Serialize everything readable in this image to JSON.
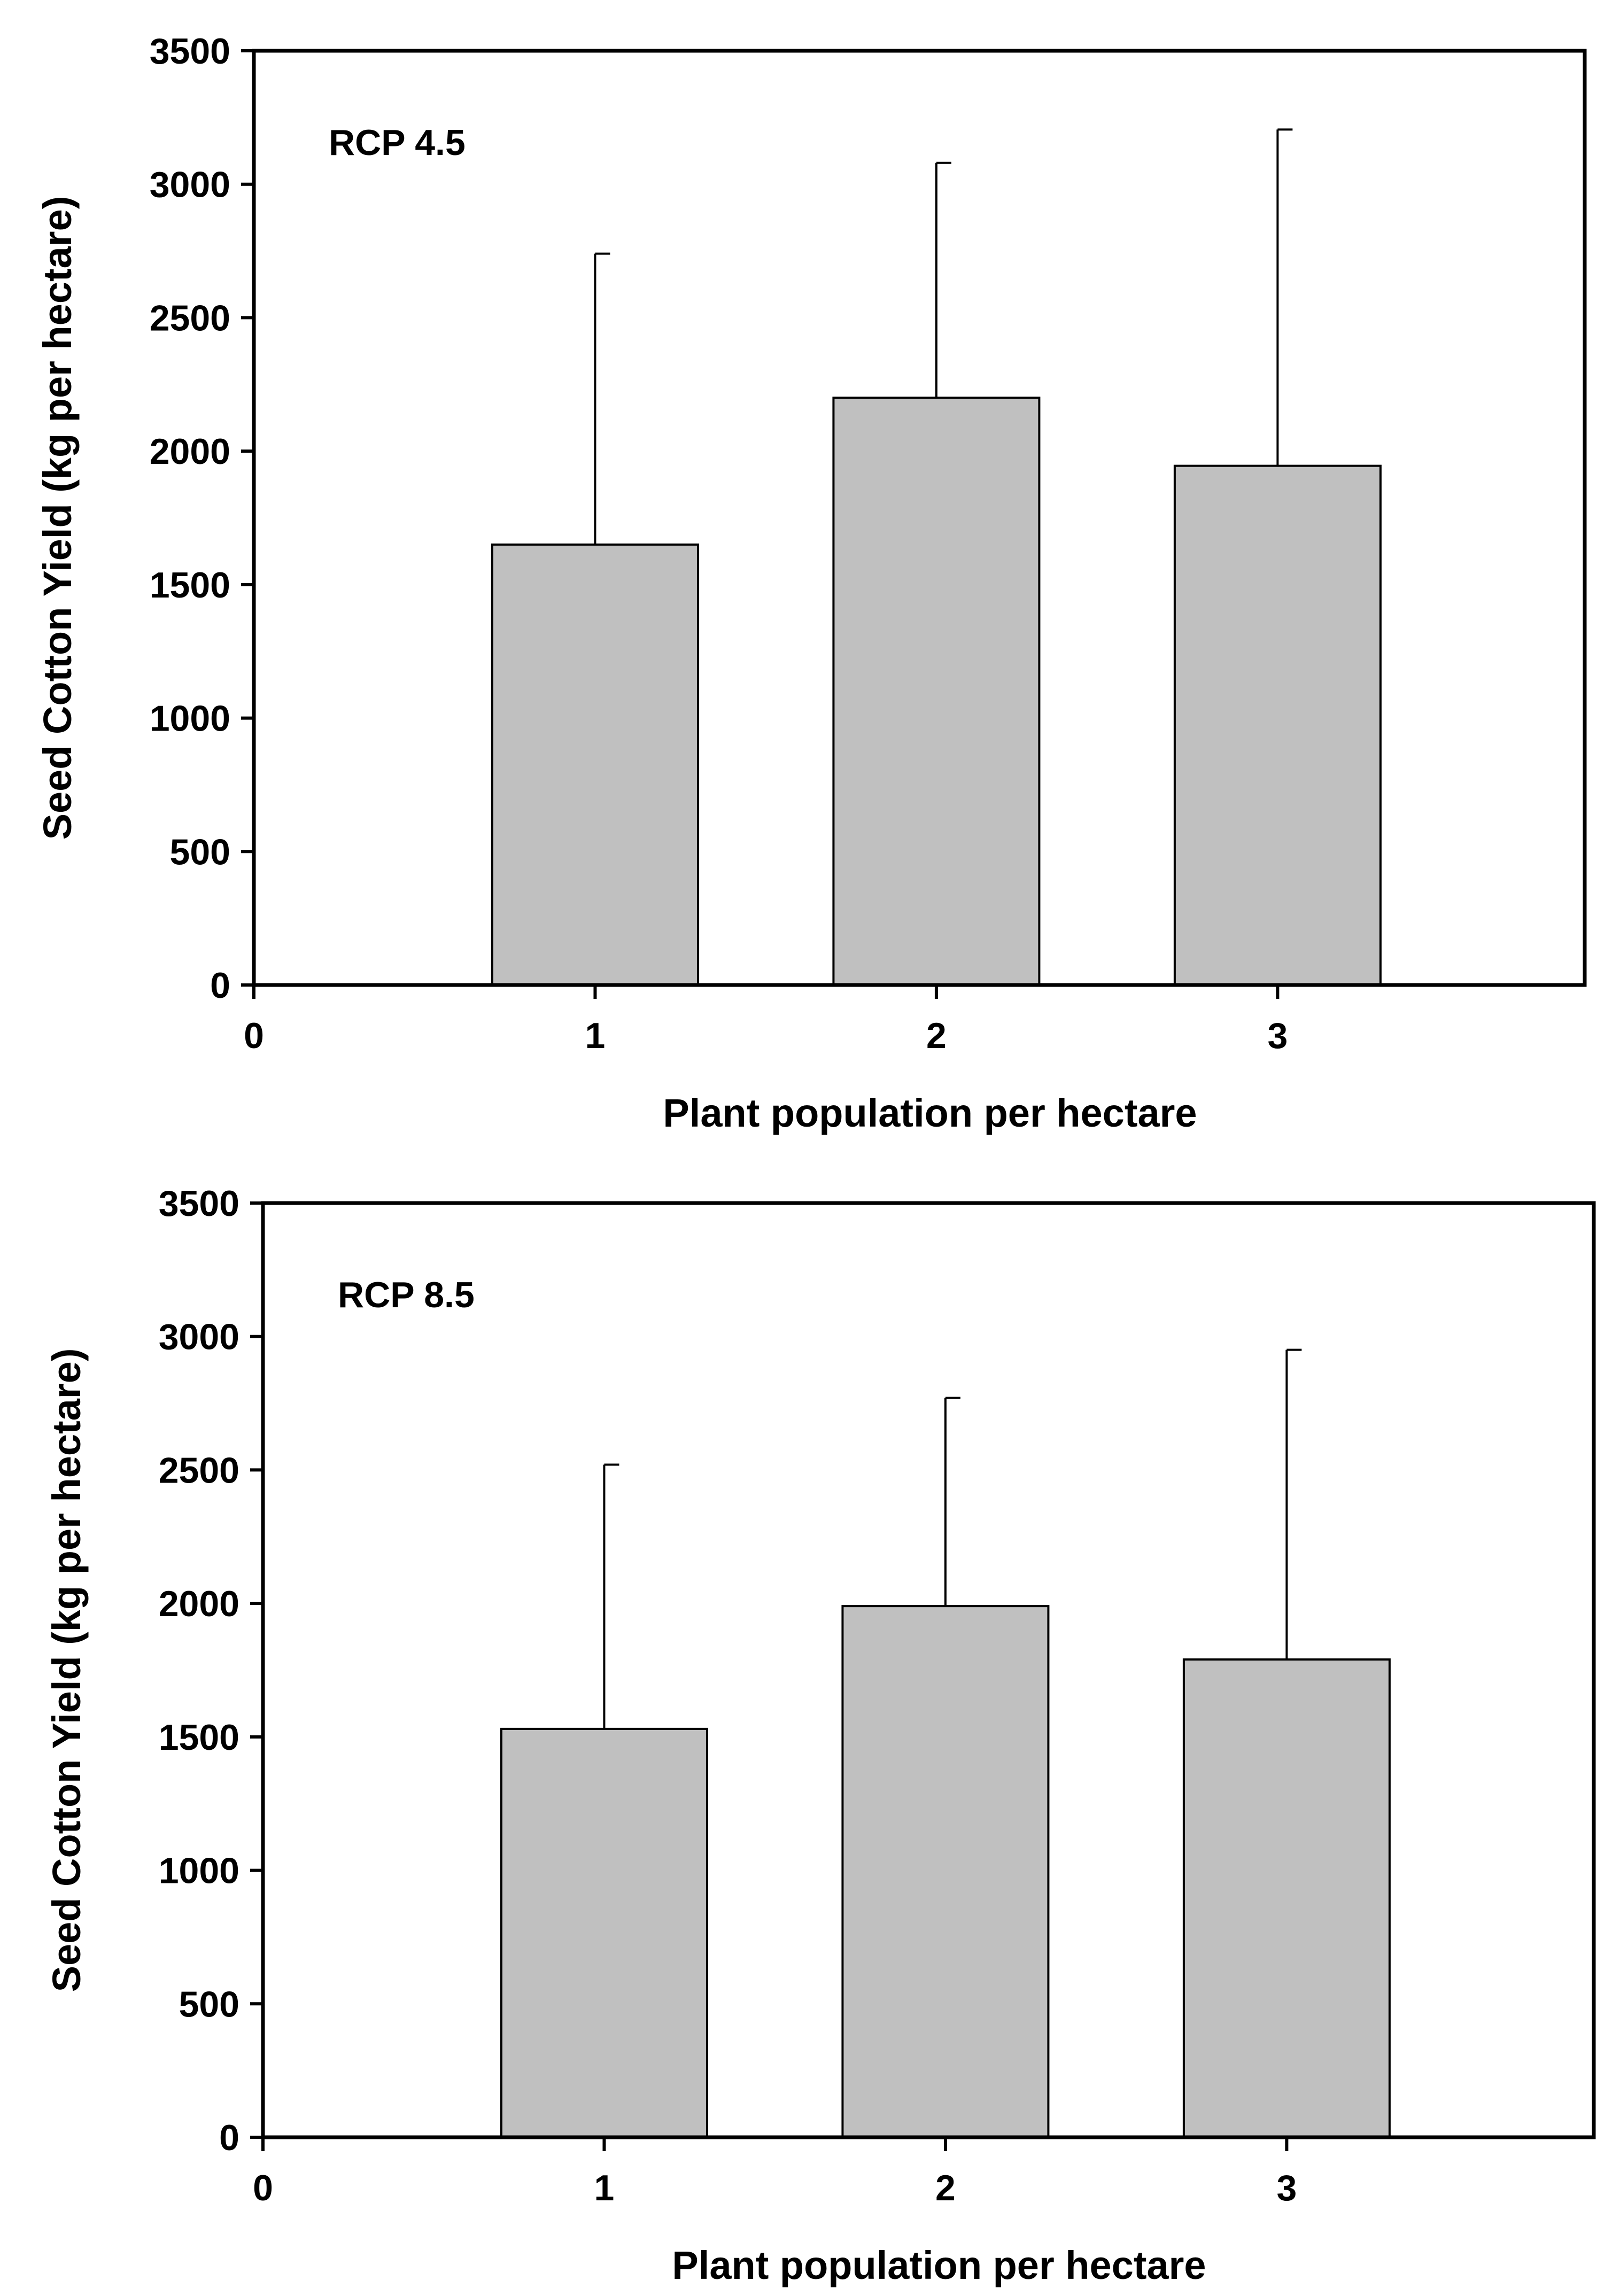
{
  "chart_data": [
    {
      "type": "bar",
      "annotation": "RCP 4.5",
      "categories": [
        "1",
        "2",
        "3"
      ],
      "x": [
        1,
        2,
        3
      ],
      "values": [
        1650,
        2200,
        1945
      ],
      "error_upper": [
        2740,
        3080,
        3205
      ],
      "xlabel": "Plant population per hectare",
      "ylabel": "Seed Cotton Yield (kg per hectare)",
      "xlim": [
        0,
        3.9
      ],
      "ylim": [
        0,
        3500
      ],
      "xticks": [
        "0",
        "1",
        "2",
        "3"
      ],
      "yticks": [
        "0",
        "500",
        "1000",
        "1500",
        "2000",
        "2500",
        "3000",
        "3500"
      ],
      "grid": false,
      "bar_color": "#c0c0c0"
    },
    {
      "type": "bar",
      "annotation": "RCP 8.5",
      "categories": [
        "1",
        "2",
        "3"
      ],
      "x": [
        1,
        2,
        3
      ],
      "values": [
        1530,
        1990,
        1790
      ],
      "error_upper": [
        2520,
        2770,
        2950
      ],
      "xlabel": "Plant population per hectare",
      "ylabel": "Seed Cotton Yield (kg per hectare)",
      "xlim": [
        0,
        3.9
      ],
      "ylim": [
        0,
        3500
      ],
      "xticks": [
        "0",
        "1",
        "2",
        "3"
      ],
      "yticks": [
        "0",
        "500",
        "1000",
        "1500",
        "2000",
        "2500",
        "3000",
        "3500"
      ],
      "grid": false,
      "bar_color": "#c0c0c0"
    }
  ]
}
